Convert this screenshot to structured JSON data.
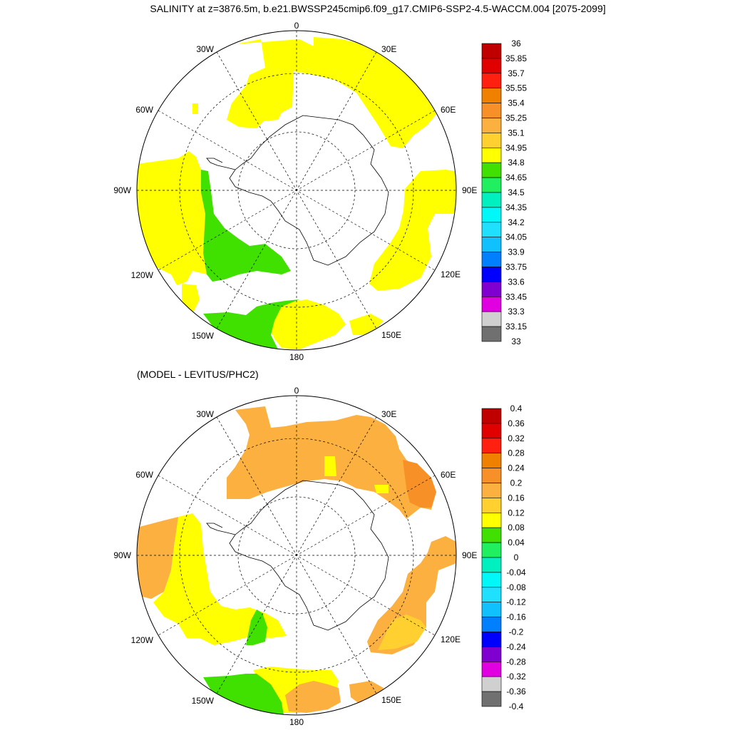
{
  "title": "SALINITY at z=3876.5m, b.e21.BWSSP245cmip6.f09_g17.CMIP6-SSP2-4.5-WACCM.004 [2075-2099]",
  "subtitle": "(MODEL - LEVITUS/PHC2)",
  "map_labels": [
    "0",
    "30E",
    "60E",
    "90E",
    "120E",
    "150E",
    "180",
    "150W",
    "120W",
    "90W",
    "60W",
    "30W"
  ],
  "colorbar_top": {
    "labels": [
      "36",
      "35.85",
      "35.7",
      "35.55",
      "35.4",
      "35.25",
      "35.1",
      "34.95",
      "34.8",
      "34.65",
      "34.5",
      "34.35",
      "34.2",
      "34.05",
      "33.9",
      "33.75",
      "33.6",
      "33.45",
      "33.3",
      "33.15",
      "33"
    ],
    "colors": [
      "#c00000",
      "#e00000",
      "#ff2010",
      "#f08000",
      "#f89028",
      "#fbb040",
      "#ffd030",
      "#ffff00",
      "#40e000",
      "#20f060",
      "#00f0c0",
      "#00f8f8",
      "#20e0ff",
      "#10c0ff",
      "#0080ff",
      "#0000ff",
      "#8000d0",
      "#e000e0",
      "#d0d0d0",
      "#707070"
    ]
  },
  "colorbar_bottom": {
    "labels": [
      "0.4",
      "0.36",
      "0.32",
      "0.28",
      "0.24",
      "0.2",
      "0.16",
      "0.12",
      "0.08",
      "0.04",
      "0",
      "-0.04",
      "-0.08",
      "-0.12",
      "-0.16",
      "-0.2",
      "-0.24",
      "-0.28",
      "-0.32",
      "-0.36",
      "-0.4"
    ],
    "colors": [
      "#c00000",
      "#e00000",
      "#ff2010",
      "#f08000",
      "#f89028",
      "#fbb040",
      "#ffd030",
      "#ffff00",
      "#40e000",
      "#20f060",
      "#00f0c0",
      "#00f8f8",
      "#20e0ff",
      "#10c0ff",
      "#0080ff",
      "#0000ff",
      "#8000d0",
      "#e000e0",
      "#d0d0d0",
      "#707070"
    ]
  }
}
